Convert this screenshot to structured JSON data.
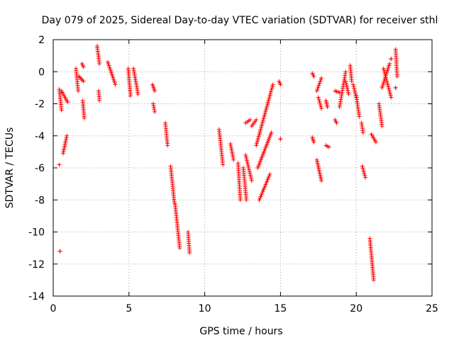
{
  "chart_data": {
    "type": "scatter",
    "title": "Day 079 of 2025, Sidereal Day-to-day VTEC variation (SDTVAR) for receiver sthl",
    "xlabel": "GPS time / hours",
    "ylabel": "SDTVAR / TECUs",
    "xlim": [
      0,
      25
    ],
    "ylim": [
      -14,
      2
    ],
    "xticks": [
      0,
      5,
      10,
      15,
      20,
      25
    ],
    "yticks": [
      -14,
      -12,
      -10,
      -8,
      -6,
      -4,
      -2,
      0,
      2
    ],
    "grid": true,
    "marker": "+",
    "color": "#ff0000",
    "segments": [
      [
        0.4,
        -5.8,
        0.4,
        -5.8
      ],
      [
        0.45,
        -11.2,
        0.45,
        -11.2
      ],
      [
        0.4,
        -1.1,
        0.55,
        -2.4
      ],
      [
        0.55,
        -1.2,
        0.95,
        -1.9
      ],
      [
        0.65,
        -5.1,
        0.9,
        -4.0
      ],
      [
        1.5,
        0.2,
        1.65,
        -1.2
      ],
      [
        1.7,
        -0.3,
        2.0,
        -0.6
      ],
      [
        1.9,
        0.5,
        2.0,
        0.3
      ],
      [
        1.95,
        -1.8,
        2.05,
        -2.9
      ],
      [
        2.9,
        1.6,
        3.05,
        0.5
      ],
      [
        3.0,
        -1.2,
        3.05,
        -1.8
      ],
      [
        3.6,
        0.6,
        4.1,
        -0.8
      ],
      [
        4.95,
        0.2,
        5.1,
        -1.5
      ],
      [
        5.3,
        0.2,
        5.6,
        -1.4
      ],
      [
        6.55,
        -0.8,
        6.7,
        -1.2
      ],
      [
        6.6,
        -2.0,
        6.7,
        -2.5
      ],
      [
        7.4,
        -3.2,
        7.55,
        -4.6
      ],
      [
        7.75,
        -5.9,
        8.0,
        -8.2
      ],
      [
        8.05,
        -8.3,
        8.35,
        -11.0
      ],
      [
        8.9,
        -10.0,
        9.0,
        -11.3
      ],
      [
        10.95,
        -3.6,
        11.2,
        -5.8
      ],
      [
        11.7,
        -4.5,
        11.9,
        -5.5
      ],
      [
        12.2,
        -5.7,
        12.35,
        -8.0
      ],
      [
        12.55,
        -6.0,
        12.75,
        -8.0
      ],
      [
        12.7,
        -5.2,
        13.1,
        -6.8
      ],
      [
        12.7,
        -3.2,
        13.0,
        -3.0
      ],
      [
        13.1,
        -3.4,
        13.4,
        -3.0
      ],
      [
        13.4,
        -4.6,
        14.5,
        -0.8
      ],
      [
        13.5,
        -6.0,
        14.4,
        -3.8
      ],
      [
        13.6,
        -8.0,
        14.3,
        -6.4
      ],
      [
        14.9,
        -0.6,
        15.0,
        -0.8
      ],
      [
        15.0,
        -4.2,
        15.0,
        -4.2
      ],
      [
        17.1,
        -0.1,
        17.2,
        -0.3
      ],
      [
        17.1,
        -4.1,
        17.2,
        -4.4
      ],
      [
        17.4,
        -5.5,
        17.7,
        -6.8
      ],
      [
        17.4,
        -1.2,
        17.7,
        -0.4
      ],
      [
        17.5,
        -1.6,
        17.7,
        -2.3
      ],
      [
        18.0,
        -1.8,
        18.1,
        -2.2
      ],
      [
        18.0,
        -4.6,
        18.2,
        -4.7
      ],
      [
        18.6,
        -3.0,
        18.7,
        -3.2
      ],
      [
        18.6,
        -1.2,
        18.9,
        -1.3
      ],
      [
        18.9,
        -2.2,
        19.3,
        0.0
      ],
      [
        19.3,
        -0.6,
        19.5,
        -1.4
      ],
      [
        19.6,
        0.4,
        19.7,
        -0.6
      ],
      [
        19.8,
        -0.8,
        20.0,
        -1.6
      ],
      [
        20.0,
        -1.5,
        20.2,
        -2.8
      ],
      [
        20.35,
        -3.2,
        20.45,
        -3.8
      ],
      [
        20.4,
        -5.9,
        20.6,
        -6.6
      ],
      [
        20.9,
        -10.4,
        21.15,
        -13.0
      ],
      [
        21.0,
        -3.9,
        21.3,
        -4.4
      ],
      [
        21.5,
        -2.0,
        21.7,
        -3.4
      ],
      [
        21.7,
        -1.0,
        22.2,
        0.5
      ],
      [
        21.8,
        0.2,
        22.3,
        -1.6
      ],
      [
        22.3,
        0.8,
        22.3,
        0.8
      ],
      [
        22.6,
        1.4,
        22.7,
        -0.3
      ],
      [
        22.6,
        -1.0,
        22.6,
        -1.0
      ]
    ]
  }
}
